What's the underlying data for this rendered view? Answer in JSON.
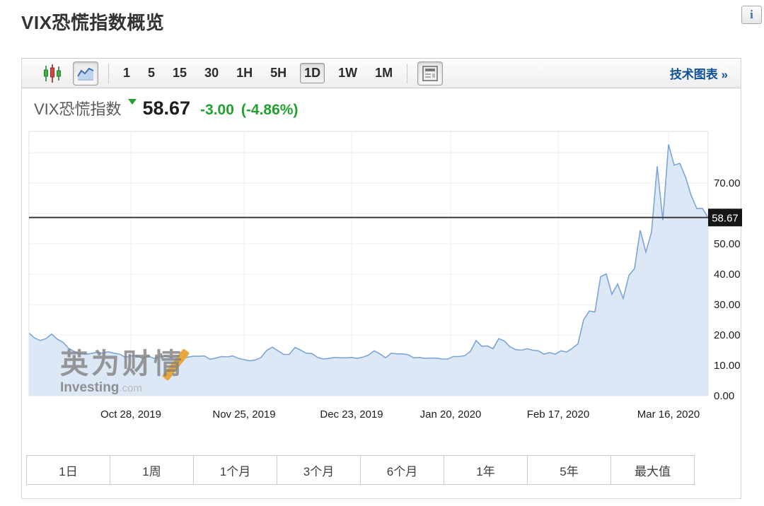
{
  "page": {
    "title": "VIX恐慌指数概览"
  },
  "info_button": {
    "glyph": "i"
  },
  "icons": {
    "candlestick_icon": "three-candles",
    "area_chart_icon": "line-area-chart",
    "news_panel_icon": "news-page",
    "info_icon": "letter-i",
    "link_arrow": "»"
  },
  "colors": {
    "accent_green": "#21a12e",
    "line_blue": "#7ca6d9",
    "area_fill": "#dce8f5",
    "price_line": "#3c3c3c",
    "tag_bg": "#161616",
    "link_blue": "#0f5299",
    "candle_green": "#3cb043",
    "candle_red": "#d9453c",
    "watermark_orange": "#e9a83a",
    "grid": "#ececec"
  },
  "toolbar": {
    "intervals": [
      {
        "label": "1",
        "active": false
      },
      {
        "label": "5",
        "active": false
      },
      {
        "label": "15",
        "active": false
      },
      {
        "label": "30",
        "active": false
      },
      {
        "label": "1H",
        "active": false
      },
      {
        "label": "5H",
        "active": false
      },
      {
        "label": "1D",
        "active": true
      },
      {
        "label": "1W",
        "active": false
      },
      {
        "label": "1M",
        "active": false
      }
    ],
    "tech_chart_link": "技术图表 »"
  },
  "quote": {
    "name": "VIX恐慌指数",
    "direction": "down",
    "last": "58.67",
    "change": "-3.00",
    "change_pct": "(-4.86%)"
  },
  "watermark": {
    "cjk": "英为财情",
    "latin": "Investing",
    "dotcom": ".com"
  },
  "ranges": [
    "1日",
    "1周",
    "1个月",
    "3个月",
    "6个月",
    "1年",
    "5年",
    "最大值"
  ],
  "chart_data": {
    "type": "area",
    "title": "VIX恐慌指数",
    "xlabel": "",
    "ylabel": "",
    "ylim": [
      0,
      87
    ],
    "grid": true,
    "legend": "none",
    "last_price": 58.67,
    "last_price_label": "58.67",
    "y_axis": {
      "side": "right",
      "ticks": [
        {
          "value": 0,
          "label": "0.00"
        },
        {
          "value": 10,
          "label": "10.00"
        },
        {
          "value": 20,
          "label": "20.00"
        },
        {
          "value": 30,
          "label": "30.00"
        },
        {
          "value": 40,
          "label": "40.00"
        },
        {
          "value": 50,
          "label": "50.00"
        },
        {
          "value": 70,
          "label": "70.00"
        }
      ],
      "gridline_values": [
        10,
        20,
        30,
        40,
        50,
        60,
        70,
        80
      ]
    },
    "x_ticks": [
      {
        "label": "Oct 28, 2019",
        "index": 18
      },
      {
        "label": "Nov 25, 2019",
        "index": 38
      },
      {
        "label": "Dec 23, 2019",
        "index": 57
      },
      {
        "label": "Jan 20, 2020",
        "index": 74.5
      },
      {
        "label": "Feb 17, 2020",
        "index": 93.5
      },
      {
        "label": "Mar 16, 2020",
        "index": 113
      }
    ],
    "series": [
      {
        "name": "VIX恐慌指数",
        "points": [
          [
            "2019-10-02",
            20.6
          ],
          [
            "2019-10-03",
            19.0
          ],
          [
            "2019-10-04",
            18.2
          ],
          [
            "2019-10-07",
            18.8
          ],
          [
            "2019-10-08",
            20.3
          ],
          [
            "2019-10-09",
            18.6
          ],
          [
            "2019-10-10",
            17.6
          ],
          [
            "2019-10-11",
            15.6
          ],
          [
            "2019-10-14",
            14.6
          ],
          [
            "2019-10-15",
            13.8
          ],
          [
            "2019-10-16",
            13.7
          ],
          [
            "2019-10-17",
            13.9
          ],
          [
            "2019-10-18",
            14.3
          ],
          [
            "2019-10-21",
            14.0
          ],
          [
            "2019-10-22",
            14.5
          ],
          [
            "2019-10-23",
            14.0
          ],
          [
            "2019-10-24",
            13.7
          ],
          [
            "2019-10-25",
            12.7
          ],
          [
            "2019-10-28",
            13.1
          ],
          [
            "2019-10-29",
            13.2
          ],
          [
            "2019-10-30",
            12.3
          ],
          [
            "2019-10-31",
            13.2
          ],
          [
            "2019-11-01",
            12.3
          ],
          [
            "2019-11-04",
            12.8
          ],
          [
            "2019-11-05",
            13.1
          ],
          [
            "2019-11-06",
            12.6
          ],
          [
            "2019-11-07",
            12.7
          ],
          [
            "2019-11-08",
            12.1
          ],
          [
            "2019-11-11",
            12.7
          ],
          [
            "2019-11-12",
            13.0
          ],
          [
            "2019-11-13",
            13.0
          ],
          [
            "2019-11-14",
            13.1
          ],
          [
            "2019-11-15",
            12.0
          ],
          [
            "2019-11-18",
            12.4
          ],
          [
            "2019-11-19",
            12.9
          ],
          [
            "2019-11-20",
            12.8
          ],
          [
            "2019-11-21",
            13.1
          ],
          [
            "2019-11-22",
            12.3
          ],
          [
            "2019-11-25",
            11.9
          ],
          [
            "2019-11-26",
            11.5
          ],
          [
            "2019-11-27",
            11.8
          ],
          [
            "2019-11-29",
            12.6
          ],
          [
            "2019-12-02",
            14.9
          ],
          [
            "2019-12-03",
            16.0
          ],
          [
            "2019-12-04",
            14.8
          ],
          [
            "2019-12-05",
            13.6
          ],
          [
            "2019-12-06",
            13.6
          ],
          [
            "2019-12-09",
            15.9
          ],
          [
            "2019-12-10",
            15.0
          ],
          [
            "2019-12-11",
            14.0
          ],
          [
            "2019-12-12",
            13.9
          ],
          [
            "2019-12-13",
            12.6
          ],
          [
            "2019-12-16",
            12.1
          ],
          [
            "2019-12-17",
            12.3
          ],
          [
            "2019-12-18",
            12.6
          ],
          [
            "2019-12-19",
            12.5
          ],
          [
            "2019-12-20",
            12.5
          ],
          [
            "2019-12-23",
            12.6
          ],
          [
            "2019-12-24",
            12.3
          ],
          [
            "2019-12-26",
            12.7
          ],
          [
            "2019-12-27",
            13.4
          ],
          [
            "2019-12-30",
            14.8
          ],
          [
            "2019-12-31",
            13.8
          ],
          [
            "2020-01-02",
            12.5
          ],
          [
            "2020-01-03",
            14.0
          ],
          [
            "2020-01-06",
            13.8
          ],
          [
            "2020-01-07",
            13.8
          ],
          [
            "2020-01-08",
            13.5
          ],
          [
            "2020-01-09",
            12.5
          ],
          [
            "2020-01-10",
            12.6
          ],
          [
            "2020-01-13",
            12.3
          ],
          [
            "2020-01-14",
            12.4
          ],
          [
            "2020-01-15",
            12.4
          ],
          [
            "2020-01-16",
            12.1
          ],
          [
            "2020-01-17",
            12.1
          ],
          [
            "2020-01-21",
            12.9
          ],
          [
            "2020-01-22",
            12.9
          ],
          [
            "2020-01-23",
            13.2
          ],
          [
            "2020-01-24",
            14.6
          ],
          [
            "2020-01-27",
            18.2
          ],
          [
            "2020-01-28",
            16.3
          ],
          [
            "2020-01-29",
            16.4
          ],
          [
            "2020-01-30",
            15.5
          ],
          [
            "2020-01-31",
            18.8
          ],
          [
            "2020-02-03",
            18.0
          ],
          [
            "2020-02-04",
            16.1
          ],
          [
            "2020-02-05",
            15.2
          ],
          [
            "2020-02-06",
            15.0
          ],
          [
            "2020-02-07",
            15.5
          ],
          [
            "2020-02-10",
            15.0
          ],
          [
            "2020-02-11",
            14.8
          ],
          [
            "2020-02-12",
            13.7
          ],
          [
            "2020-02-13",
            14.2
          ],
          [
            "2020-02-14",
            13.7
          ],
          [
            "2020-02-18",
            14.8
          ],
          [
            "2020-02-19",
            14.4
          ],
          [
            "2020-02-20",
            15.6
          ],
          [
            "2020-02-21",
            17.1
          ],
          [
            "2020-02-24",
            25.0
          ],
          [
            "2020-02-25",
            27.9
          ],
          [
            "2020-02-26",
            27.6
          ],
          [
            "2020-02-27",
            39.2
          ],
          [
            "2020-02-28",
            40.1
          ],
          [
            "2020-03-02",
            33.4
          ],
          [
            "2020-03-03",
            36.8
          ],
          [
            "2020-03-04",
            32.0
          ],
          [
            "2020-03-05",
            39.6
          ],
          [
            "2020-03-06",
            41.9
          ],
          [
            "2020-03-09",
            54.5
          ],
          [
            "2020-03-10",
            47.3
          ],
          [
            "2020-03-11",
            53.9
          ],
          [
            "2020-03-12",
            75.5
          ],
          [
            "2020-03-13",
            57.8
          ],
          [
            "2020-03-16",
            82.7
          ],
          [
            "2020-03-17",
            75.9
          ],
          [
            "2020-03-18",
            76.5
          ],
          [
            "2020-03-19",
            72.0
          ],
          [
            "2020-03-20",
            66.0
          ],
          [
            "2020-03-23",
            61.6
          ],
          [
            "2020-03-24",
            61.7
          ],
          [
            "2020-03-25",
            58.67
          ]
        ]
      }
    ]
  }
}
